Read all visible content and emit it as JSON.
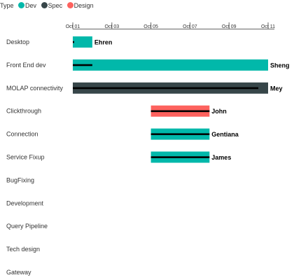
{
  "legend": {
    "title": "Type",
    "items": [
      {
        "label": "Dev",
        "color": "#01B8AA"
      },
      {
        "label": "Spec",
        "color": "#374649"
      },
      {
        "label": "Design",
        "color": "#FD625E"
      }
    ]
  },
  "chart_data": {
    "type": "gantt",
    "x_axis": {
      "ticks": [
        "Oct 01",
        "Oct 03",
        "Oct 05",
        "Oct 07",
        "Oct 09",
        "Oct 11"
      ],
      "range": [
        "Oct 01",
        "Oct 11"
      ],
      "position": "top"
    },
    "grid": false,
    "legend_position": "top-left",
    "tasks": [
      {
        "name": "Desktop",
        "start": "Oct 01",
        "end": "Oct 02",
        "type": "Dev",
        "resource": "Ehren",
        "progress_end": "Oct 01"
      },
      {
        "name": "Front End dev",
        "start": "Oct 01",
        "end": "Oct 11",
        "type": "Dev",
        "resource": "Sheng",
        "progress_end": "Oct 02"
      },
      {
        "name": "MOLAP connectivity",
        "start": "Oct 01",
        "end": "Oct 11",
        "type": "Spec",
        "resource": "Mey",
        "progress_end": "Oct 10.5"
      },
      {
        "name": "Clickthrough",
        "start": "Oct 05",
        "end": "Oct 08",
        "type": "Design",
        "resource": "John",
        "progress_end": "Oct 08"
      },
      {
        "name": "Connection",
        "start": "Oct 05",
        "end": "Oct 08",
        "type": "Dev",
        "resource": "Gentiana",
        "progress_end": "Oct 08"
      },
      {
        "name": "Service Fixup",
        "start": "Oct 05",
        "end": "Oct 08",
        "type": "Dev",
        "resource": "James",
        "progress_end": "Oct 08"
      },
      {
        "name": "BugFixing",
        "start": null,
        "end": null,
        "type": null,
        "resource": "",
        "progress_end": null
      },
      {
        "name": "Development",
        "start": null,
        "end": null,
        "type": null,
        "resource": "",
        "progress_end": null
      },
      {
        "name": "Query Pipeline",
        "start": null,
        "end": null,
        "type": null,
        "resource": "",
        "progress_end": null
      },
      {
        "name": "Tech design",
        "start": null,
        "end": null,
        "type": null,
        "resource": "",
        "progress_end": null
      },
      {
        "name": "Gateway",
        "start": null,
        "end": null,
        "type": null,
        "resource": "",
        "progress_end": null
      }
    ]
  }
}
